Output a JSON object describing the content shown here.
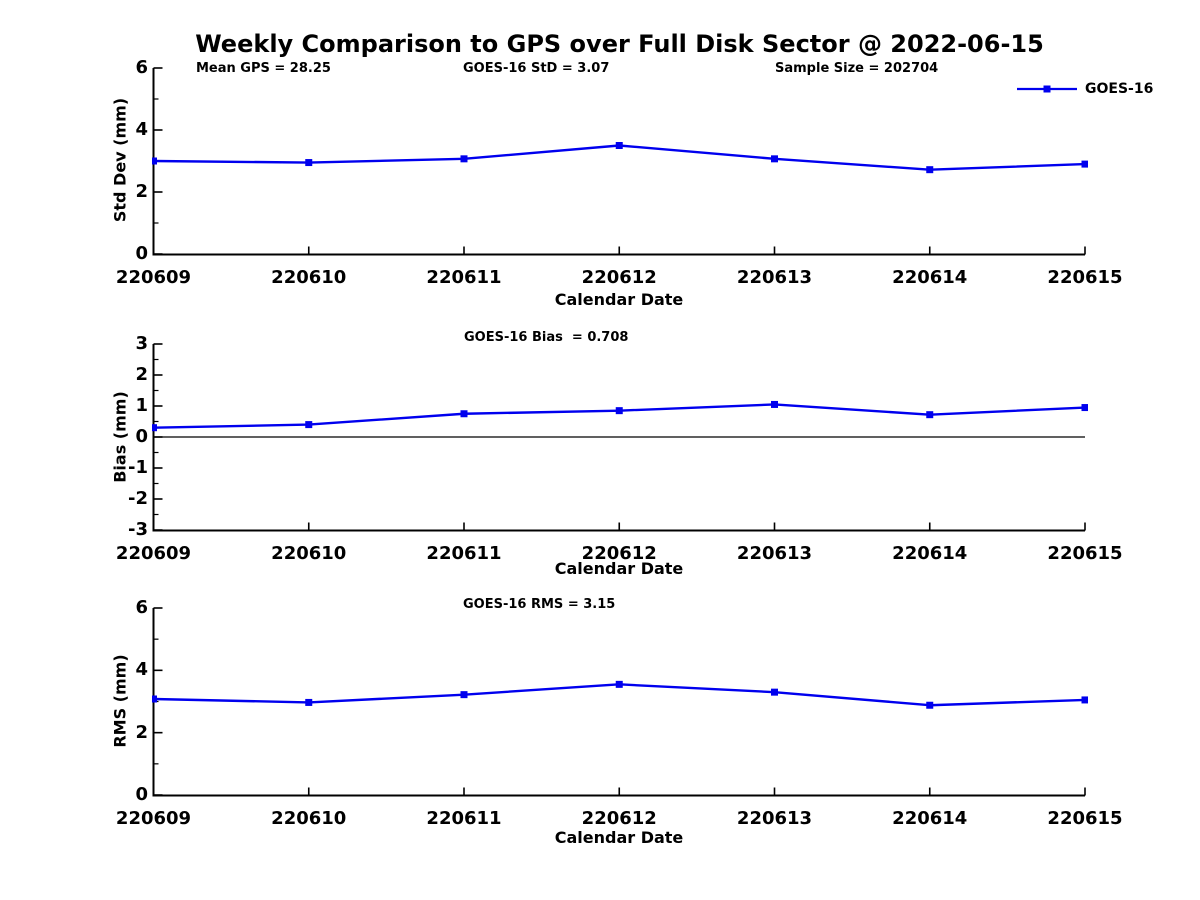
{
  "figure": {
    "title": "Weekly Comparison to GPS over Full Disk Sector @ 2022-06-15",
    "legend": {
      "label": "GOES-16"
    },
    "accent_color": "#0000EE",
    "axis_color": "#000000"
  },
  "chart_data": [
    {
      "type": "line",
      "name": "std-dev-vs-date",
      "annotations": [
        "Mean GPS = 28.25",
        "GOES-16 StD = 3.07",
        "Sample Size = 202704"
      ],
      "ylabel": "Std Dev (mm)",
      "xlabel": "Calendar Date",
      "categories": [
        "220609",
        "220610",
        "220611",
        "220612",
        "220613",
        "220614",
        "220615"
      ],
      "series": [
        {
          "name": "GOES-16",
          "values": [
            3.0,
            2.95,
            3.07,
            3.5,
            3.07,
            2.72,
            2.9
          ]
        }
      ],
      "ylim": [
        0,
        6
      ],
      "yticks": [
        0,
        2,
        4,
        6
      ],
      "minor_yticks": [
        1,
        3,
        5
      ],
      "zero_line": false,
      "grid": false,
      "legend_position": "top-right"
    },
    {
      "type": "line",
      "name": "bias-vs-date",
      "annotations": [
        "GOES-16 Bias  = 0.708"
      ],
      "ylabel": "Bias (mm)",
      "xlabel": "Calendar Date",
      "categories": [
        "220609",
        "220610",
        "220611",
        "220612",
        "220613",
        "220614",
        "220615"
      ],
      "series": [
        {
          "name": "GOES-16",
          "values": [
            0.3,
            0.4,
            0.75,
            0.85,
            1.05,
            0.72,
            0.95
          ]
        }
      ],
      "ylim": [
        -3,
        3
      ],
      "yticks": [
        -3,
        -2,
        -1,
        0,
        1,
        2,
        3
      ],
      "minor_yticks": [
        -2.5,
        -1.5,
        -0.5,
        0.5,
        1.5,
        2.5
      ],
      "zero_line": true,
      "grid": false,
      "legend_position": "none"
    },
    {
      "type": "line",
      "name": "rms-vs-date",
      "annotations": [
        "GOES-16 RMS = 3.15"
      ],
      "ylabel": "RMS (mm)",
      "xlabel": "Calendar Date",
      "categories": [
        "220609",
        "220610",
        "220611",
        "220612",
        "220613",
        "220614",
        "220615"
      ],
      "series": [
        {
          "name": "GOES-16",
          "values": [
            3.08,
            2.97,
            3.22,
            3.55,
            3.3,
            2.88,
            3.05
          ]
        }
      ],
      "ylim": [
        0,
        6
      ],
      "yticks": [
        0,
        2,
        4,
        6
      ],
      "minor_yticks": [
        1,
        3,
        5
      ],
      "zero_line": false,
      "grid": false,
      "legend_position": "none"
    }
  ]
}
